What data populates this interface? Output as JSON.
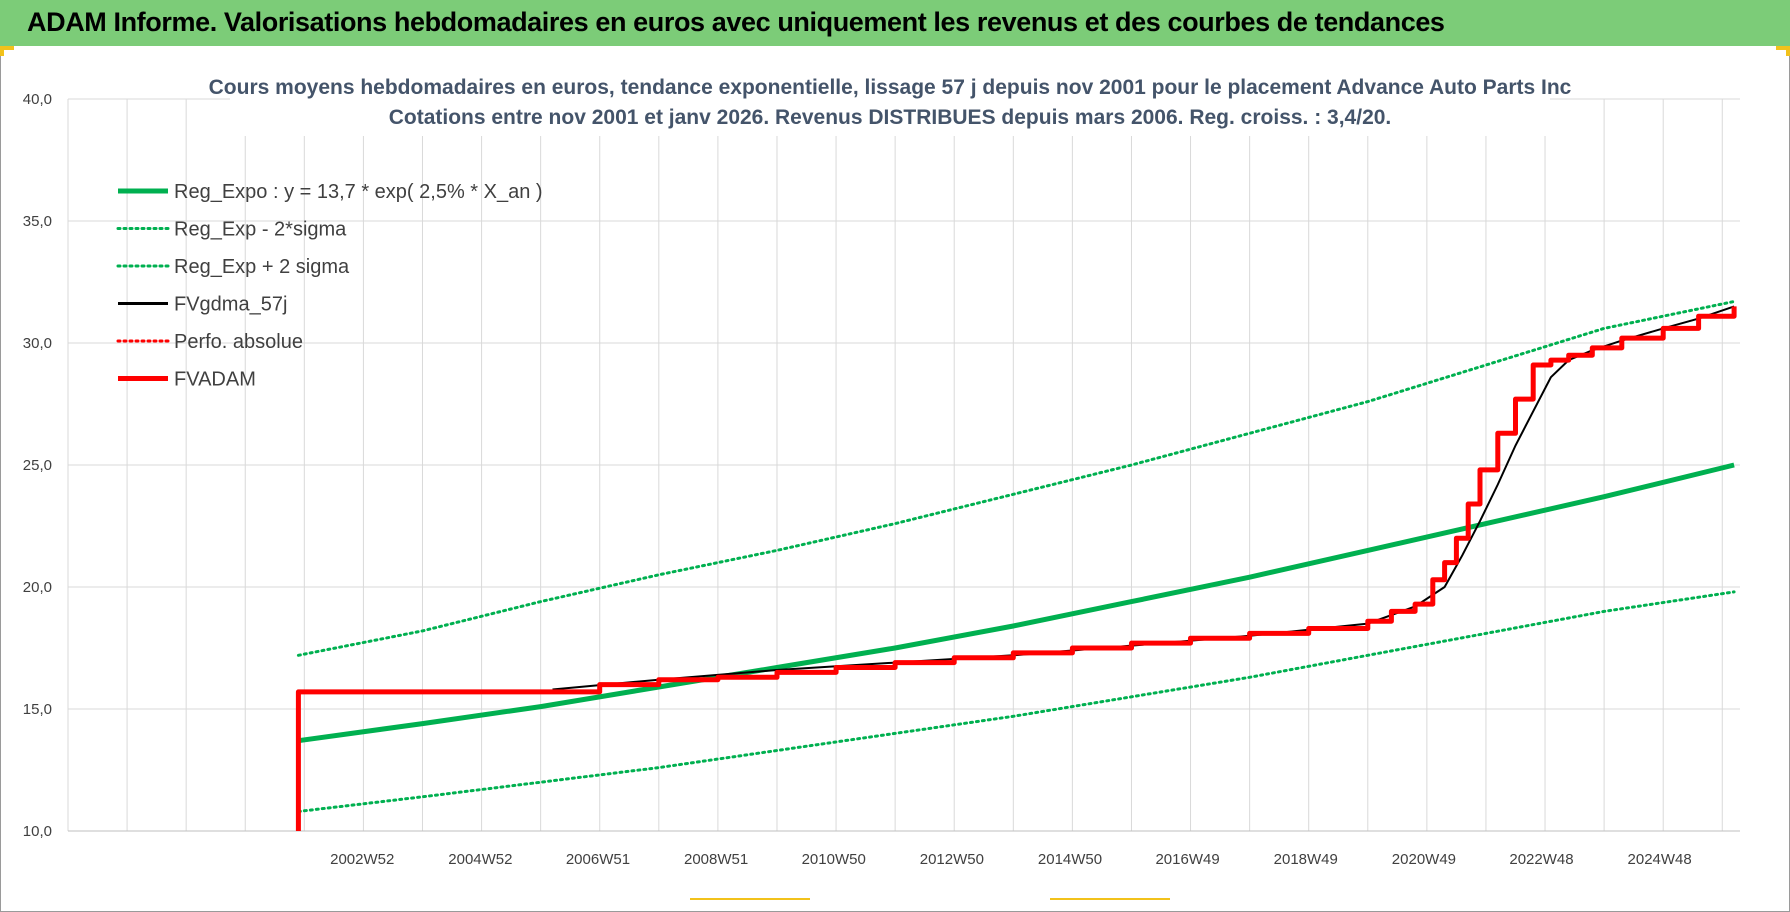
{
  "banner": {
    "title": "ADAM Informe. Valorisations hebdomadaires en euros avec uniquement les revenus et des courbes de tendances"
  },
  "colors": {
    "banner_bg": "#7ccc78",
    "trend_green": "#00b050",
    "series_red": "#ff0000",
    "series_black": "#000000",
    "title_text": "#44546a",
    "corner_accent": "#f2c21b"
  },
  "chart_data": {
    "type": "line",
    "title": "Cours moyens hebdomadaires en euros, tendance exponentielle, lissage 57 j depuis nov 2001 pour le placement Advance Auto Parts Inc",
    "subtitle": "Cotations entre nov 2001 et janv 2026. Revenus DISTRIBUES depuis mars 2006. Reg. croiss. : 3,4/20.",
    "xlabel": "",
    "ylabel": "",
    "ylim": [
      10,
      40
    ],
    "y_ticks": [
      "10,0",
      "15,0",
      "20,0",
      "25,0",
      "30,0",
      "35,0",
      "40,0"
    ],
    "x_range": [
      1998.0,
      2026.3
    ],
    "x_ticks": [
      {
        "label": "2002W52",
        "x": 2002.98
      },
      {
        "label": "2004W52",
        "x": 2004.98
      },
      {
        "label": "2006W51",
        "x": 2006.97
      },
      {
        "label": "2008W51",
        "x": 2008.97
      },
      {
        "label": "2010W50",
        "x": 2010.96
      },
      {
        "label": "2012W50",
        "x": 2012.96
      },
      {
        "label": "2014W50",
        "x": 2014.96
      },
      {
        "label": "2016W49",
        "x": 2016.95
      },
      {
        "label": "2018W49",
        "x": 2018.95
      },
      {
        "label": "2020W49",
        "x": 2020.95
      },
      {
        "label": "2022W48",
        "x": 2022.94
      },
      {
        "label": "2024W48",
        "x": 2024.94
      }
    ],
    "grid": true,
    "legend_position": "top-left",
    "series": [
      {
        "name": "Reg_Expo : y = 13,7 * exp( 2,5% *  X_an )",
        "style": "solid-thick",
        "color": "#00b050",
        "x": [
          2001.9,
          2004.0,
          2006.0,
          2008.0,
          2010.0,
          2012.0,
          2014.0,
          2016.0,
          2018.0,
          2020.0,
          2022.0,
          2024.0,
          2026.2
        ],
        "y": [
          13.7,
          14.4,
          15.1,
          15.9,
          16.7,
          17.5,
          18.4,
          19.4,
          20.4,
          21.5,
          22.6,
          23.7,
          25.0
        ]
      },
      {
        "name": "Reg_Exp - 2*sigma",
        "style": "dotted",
        "color": "#00b050",
        "x": [
          2001.9,
          2004.0,
          2006.0,
          2008.0,
          2010.0,
          2012.0,
          2014.0,
          2016.0,
          2018.0,
          2020.0,
          2022.0,
          2024.0,
          2026.2
        ],
        "y": [
          10.8,
          11.4,
          12.0,
          12.6,
          13.3,
          14.0,
          14.7,
          15.5,
          16.3,
          17.2,
          18.1,
          19.0,
          19.8
        ]
      },
      {
        "name": "Reg_Exp + 2 sigma",
        "style": "dotted",
        "color": "#00b050",
        "x": [
          2001.9,
          2004.0,
          2006.0,
          2008.0,
          2010.0,
          2012.0,
          2014.0,
          2016.0,
          2018.0,
          2020.0,
          2022.0,
          2024.0,
          2026.2
        ],
        "y": [
          17.2,
          18.2,
          19.4,
          20.5,
          21.5,
          22.6,
          23.8,
          25.0,
          26.3,
          27.6,
          29.1,
          30.6,
          31.7
        ]
      },
      {
        "name": "FVgdma_57j",
        "style": "solid-thin",
        "color": "#000000",
        "x": [
          2006.2,
          2008.0,
          2010.0,
          2012.0,
          2014.0,
          2016.0,
          2018.0,
          2020.0,
          2020.8,
          2021.3,
          2021.6,
          2021.9,
          2022.2,
          2022.5,
          2022.8,
          2023.1,
          2023.4,
          2023.8,
          2024.3,
          2025.0,
          2025.6,
          2026.2
        ],
        "y": [
          15.8,
          16.2,
          16.6,
          16.9,
          17.2,
          17.6,
          18.0,
          18.5,
          19.2,
          20.0,
          21.3,
          22.7,
          24.2,
          25.8,
          27.2,
          28.6,
          29.3,
          29.7,
          30.1,
          30.6,
          31.0,
          31.5
        ]
      },
      {
        "name": "Perfo. absolue",
        "style": "dotted",
        "color": "#ff0000",
        "x": [],
        "y": []
      },
      {
        "name": "FVADAM",
        "style": "solid-thick-step",
        "color": "#ff0000",
        "x": [
          2001.9,
          2001.9,
          2006.2,
          2007.0,
          2008.0,
          2009.0,
          2010.0,
          2011.0,
          2012.0,
          2013.0,
          2014.0,
          2015.0,
          2016.0,
          2017.0,
          2018.0,
          2019.0,
          2020.0,
          2020.4,
          2020.8,
          2021.1,
          2021.3,
          2021.5,
          2021.7,
          2021.9,
          2022.2,
          2022.5,
          2022.8,
          2023.1,
          2023.4,
          2023.8,
          2024.3,
          2025.0,
          2025.6,
          2026.2
        ],
        "y": [
          10.0,
          15.7,
          15.7,
          16.0,
          16.2,
          16.3,
          16.5,
          16.7,
          16.9,
          17.1,
          17.3,
          17.5,
          17.7,
          17.9,
          18.1,
          18.3,
          18.6,
          19.0,
          19.3,
          20.3,
          21.0,
          22.0,
          23.4,
          24.8,
          26.3,
          27.7,
          29.1,
          29.3,
          29.5,
          29.8,
          30.2,
          30.6,
          31.1,
          31.5
        ]
      }
    ]
  }
}
